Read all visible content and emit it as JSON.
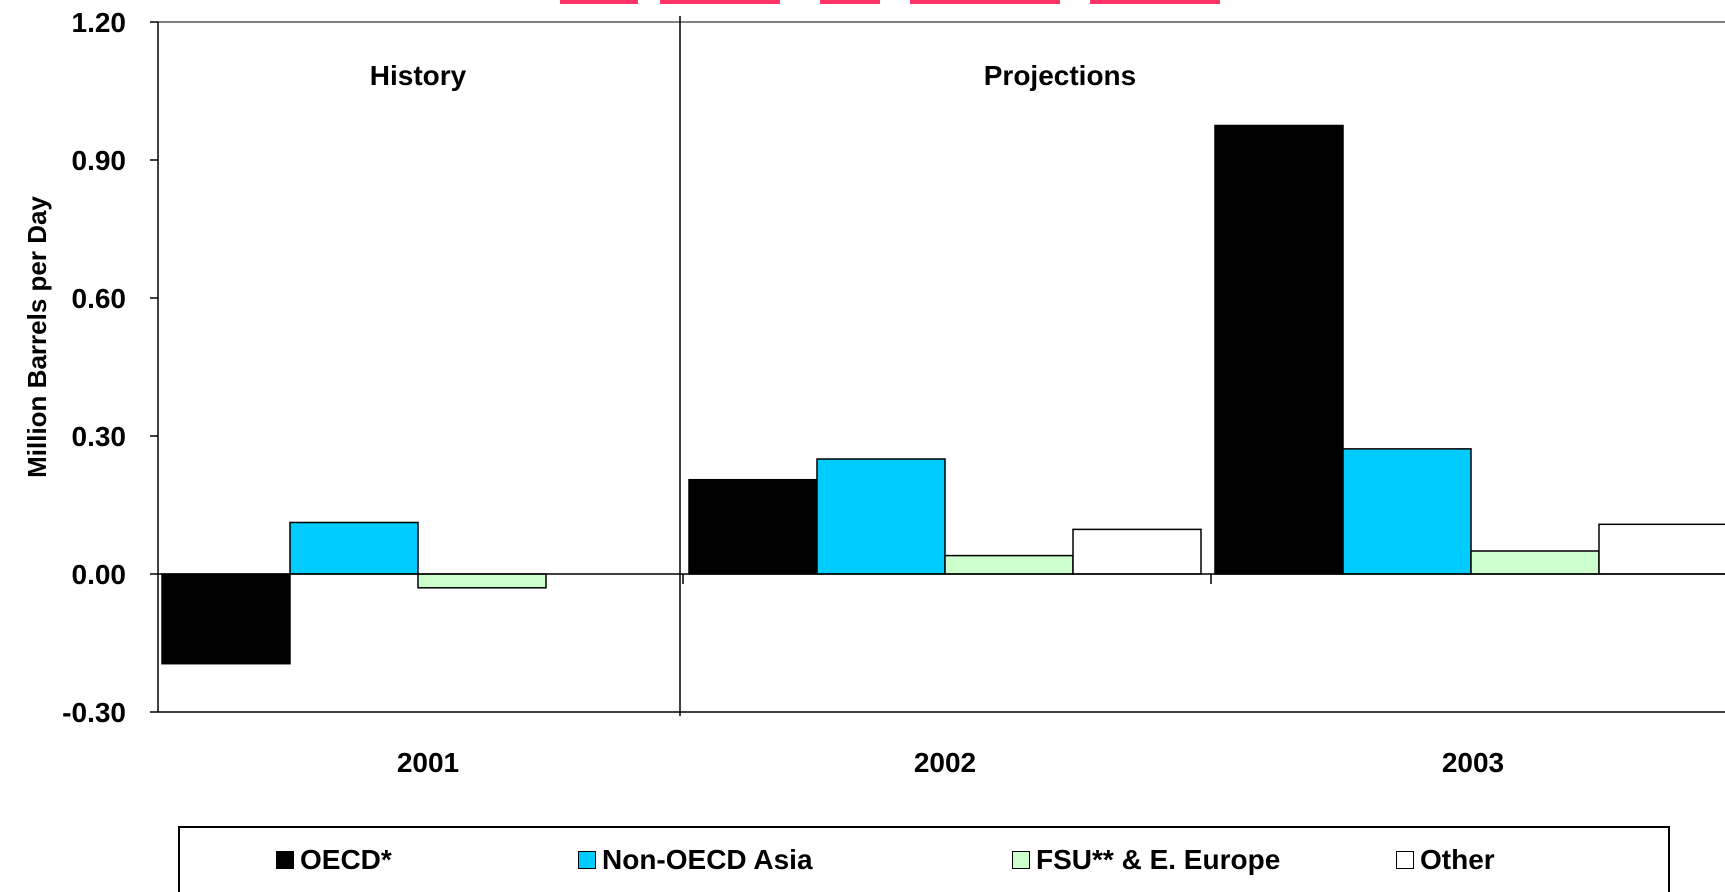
{
  "chart_data": {
    "type": "bar",
    "title": "",
    "xlabel": "",
    "ylabel": "Million Barrels per Day",
    "ylim": [
      -0.3,
      1.2
    ],
    "yticks": [
      "1.20",
      "0.90",
      "0.60",
      "0.30",
      "0.00",
      "-0.30"
    ],
    "yticks_values": [
      1.2,
      0.9,
      0.6,
      0.3,
      0.0,
      -0.3
    ],
    "categories": [
      "2001",
      "2002",
      "2003"
    ],
    "grid": false,
    "legend_placement": "bottom",
    "sections": [
      {
        "label": "History"
      },
      {
        "label": "Projections"
      }
    ],
    "series": [
      {
        "name": "OECD*",
        "color": "#000000",
        "values": [
          -0.195,
          0.205,
          0.975
        ]
      },
      {
        "name": "Non-OECD Asia",
        "color": "#00CCFF",
        "values": [
          0.112,
          0.25,
          0.272
        ]
      },
      {
        "name": "FSU** & E. Europe",
        "color": "#CCFFCC",
        "values": [
          -0.03,
          0.04,
          0.05
        ]
      },
      {
        "name": "Other",
        "color": "#FFFFFF",
        "values": [
          null,
          0.097,
          0.108
        ]
      }
    ]
  },
  "colors": {
    "title_partial": "#FF3366"
  }
}
